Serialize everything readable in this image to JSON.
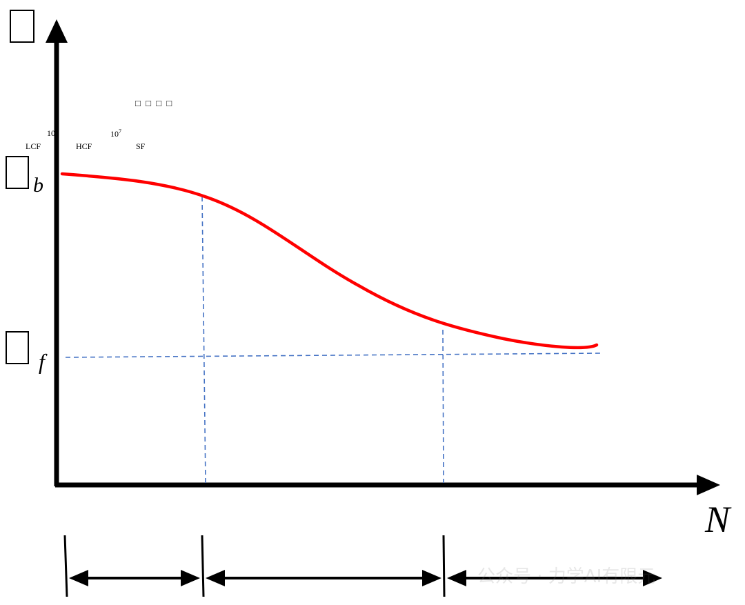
{
  "axis": {
    "y_symbol": "",
    "x_symbol": "N",
    "upper_level_subscript": "b",
    "lower_level_subscript": "f"
  },
  "header_note": "□ □ □ □",
  "regions": {
    "lcf": "LCF",
    "hcf": "HCF",
    "sf": "SF",
    "tick_1": "10",
    "tick_2": "10",
    "tick_2_exp": "7"
  },
  "watermark": "公众号 · 力学AI有限元",
  "colors": {
    "curve": "#ff0000",
    "guide": "#4472c4",
    "axis": "#000000"
  }
}
